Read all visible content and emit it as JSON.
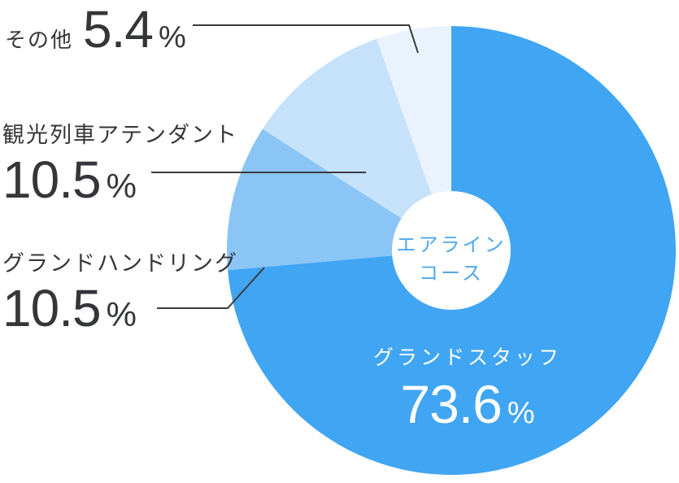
{
  "chart_data": {
    "type": "pie",
    "donut": true,
    "direction": "clockwise",
    "start_angle_deg": 0,
    "unit": "%",
    "hole_color": "#FFFFFF",
    "center_label": {
      "line1": "エアライン",
      "line2": "コース"
    },
    "slices": [
      {
        "label": "グランドスタッフ",
        "value": 73.6,
        "color": "#40A5F3"
      },
      {
        "label": "グランドハンドリング",
        "value": 10.5,
        "color": "#8AC5F6"
      },
      {
        "label": "観光列車アテンダント",
        "value": 10.5,
        "color": "#C6E2FA"
      },
      {
        "label": "その他",
        "value": 5.4,
        "color": "#EAF3FD"
      }
    ],
    "legend_position": "callouts",
    "colors": {
      "callout_text": "#35363A",
      "leader_line": "#3A3B3F",
      "center_text": "#4FA8EF",
      "main_label_text": "#FFFFFF"
    }
  }
}
